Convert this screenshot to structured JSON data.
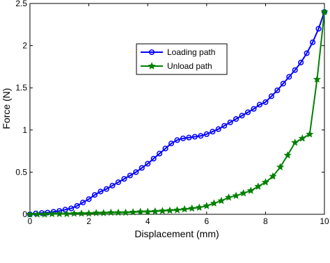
{
  "chart_data": {
    "type": "line",
    "xlabel": "Displacement (mm)",
    "ylabel": "Force (N)",
    "xlim": [
      0,
      10
    ],
    "ylim": [
      0,
      2.5
    ],
    "xticks": [
      0,
      2,
      4,
      6,
      8,
      10
    ],
    "yticks": [
      0,
      0.5,
      1,
      1.5,
      2,
      2.5
    ],
    "legend": "upper center",
    "series": [
      {
        "name": "Loading path",
        "color": "#0000ff",
        "marker": "circle",
        "x": [
          0,
          0.2,
          0.4,
          0.6,
          0.8,
          1,
          1.2,
          1.4,
          1.6,
          1.8,
          2,
          2.2,
          2.4,
          2.6,
          2.8,
          3,
          3.2,
          3.4,
          3.6,
          3.8,
          4,
          4.2,
          4.4,
          4.6,
          4.8,
          5,
          5.2,
          5.4,
          5.6,
          5.8,
          6,
          6.2,
          6.4,
          6.6,
          6.8,
          7,
          7.2,
          7.4,
          7.6,
          7.8,
          8,
          8.2,
          8.4,
          8.6,
          8.8,
          9,
          9.2,
          9.4,
          9.6,
          9.8,
          10
        ],
        "values": [
          0,
          0.01,
          0.015,
          0.02,
          0.03,
          0.04,
          0.055,
          0.07,
          0.1,
          0.14,
          0.18,
          0.23,
          0.27,
          0.3,
          0.34,
          0.38,
          0.42,
          0.46,
          0.5,
          0.55,
          0.6,
          0.66,
          0.72,
          0.78,
          0.84,
          0.88,
          0.9,
          0.91,
          0.92,
          0.93,
          0.95,
          0.98,
          1.01,
          1.05,
          1.09,
          1.13,
          1.17,
          1.21,
          1.25,
          1.3,
          1.33,
          1.4,
          1.47,
          1.55,
          1.63,
          1.71,
          1.8,
          1.91,
          2.04,
          2.2,
          2.4
        ]
      },
      {
        "name": "Unload path",
        "color": "#008000",
        "marker": "star",
        "x": [
          0,
          0.25,
          0.5,
          0.75,
          1,
          1.25,
          1.5,
          1.75,
          2,
          2.25,
          2.5,
          2.75,
          3,
          3.25,
          3.5,
          3.75,
          4,
          4.25,
          4.5,
          4.75,
          5,
          5.25,
          5.5,
          5.75,
          6,
          6.25,
          6.5,
          6.75,
          7,
          7.25,
          7.5,
          7.75,
          8,
          8.25,
          8.5,
          8.75,
          9,
          9.25,
          9.5,
          9.75,
          10
        ],
        "values": [
          0,
          0,
          0,
          0.005,
          0.005,
          0.005,
          0.01,
          0.01,
          0.01,
          0.015,
          0.015,
          0.02,
          0.02,
          0.02,
          0.025,
          0.03,
          0.03,
          0.035,
          0.04,
          0.045,
          0.05,
          0.06,
          0.07,
          0.08,
          0.1,
          0.13,
          0.16,
          0.2,
          0.22,
          0.25,
          0.28,
          0.33,
          0.38,
          0.45,
          0.56,
          0.7,
          0.85,
          0.9,
          0.95,
          1.6,
          2.4
        ]
      }
    ]
  }
}
